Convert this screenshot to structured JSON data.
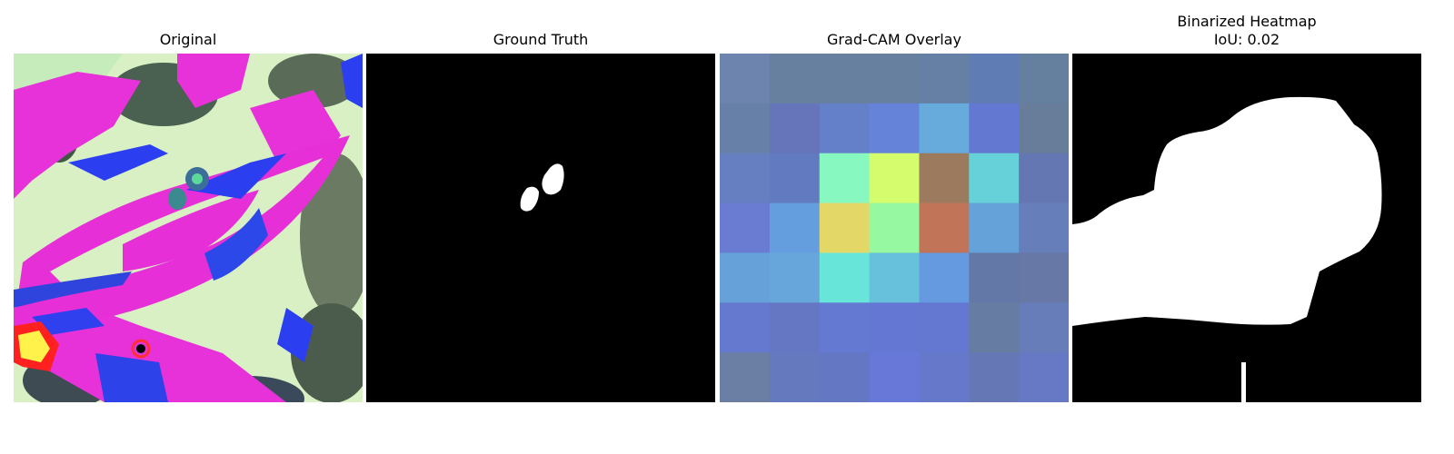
{
  "panels": [
    {
      "title": "Original"
    },
    {
      "title": "Ground Truth"
    },
    {
      "title": "Grad-CAM Overlay"
    },
    {
      "title": "Binarized Heatmap",
      "subtitle": "IoU: 0.02"
    }
  ],
  "gradcam": {
    "grid_size": 7,
    "cells": [
      [
        "#6c84ae",
        "#67809f",
        "#67809f",
        "#67809f",
        "#667fa5",
        "#607cb4",
        "#65809f"
      ],
      [
        "#6780a8",
        "#6675b9",
        "#6480c8",
        "#6683da",
        "#66abdc",
        "#6378d0",
        "#677d9a"
      ],
      [
        "#667fc0",
        "#627ac0",
        "#88f8c1",
        "#d5fc6c",
        "#9c7a5e",
        "#66d1d9",
        "#6477b2"
      ],
      [
        "#6a7bd2",
        "#659edf",
        "#e3d867",
        "#96f8a1",
        "#c27458",
        "#65a2da",
        "#667fba"
      ],
      [
        "#66a1da",
        "#66a6da",
        "#67e5d8",
        "#67c1dc",
        "#6599e0",
        "#6478a8",
        "#6777a6"
      ],
      [
        "#6579cf",
        "#6577c3",
        "#6479d2",
        "#6478d3",
        "#6578d1",
        "#677ca2",
        "#667dba"
      ],
      [
        "#6b7ea3",
        "#6579bf",
        "#6477c2",
        "#6778d8",
        "#6578c9",
        "#6677b5",
        "#6779c4"
      ]
    ]
  }
}
